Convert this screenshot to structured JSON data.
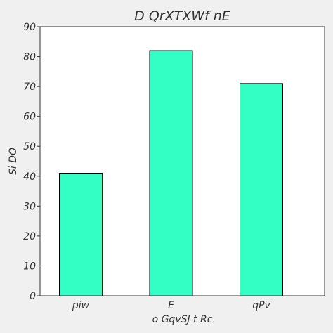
{
  "chart_data": {
    "type": "bar",
    "title": "D QrXTXWf  nE",
    "xlabel": "o  GqvSJ t Rc",
    "ylabel": "Si  DO",
    "categories": [
      "piw",
      "E",
      "qPv"
    ],
    "values": [
      41,
      82,
      71
    ],
    "ylim": [
      0,
      90
    ],
    "yticks": [
      0,
      10,
      20,
      30,
      40,
      50,
      60,
      70,
      80,
      90
    ],
    "grid": false,
    "bar_color": "#33ffc4",
    "bar_edge_color": "#000000",
    "plot_background": "#ffffff",
    "figure_background": "#f0f0f0"
  }
}
